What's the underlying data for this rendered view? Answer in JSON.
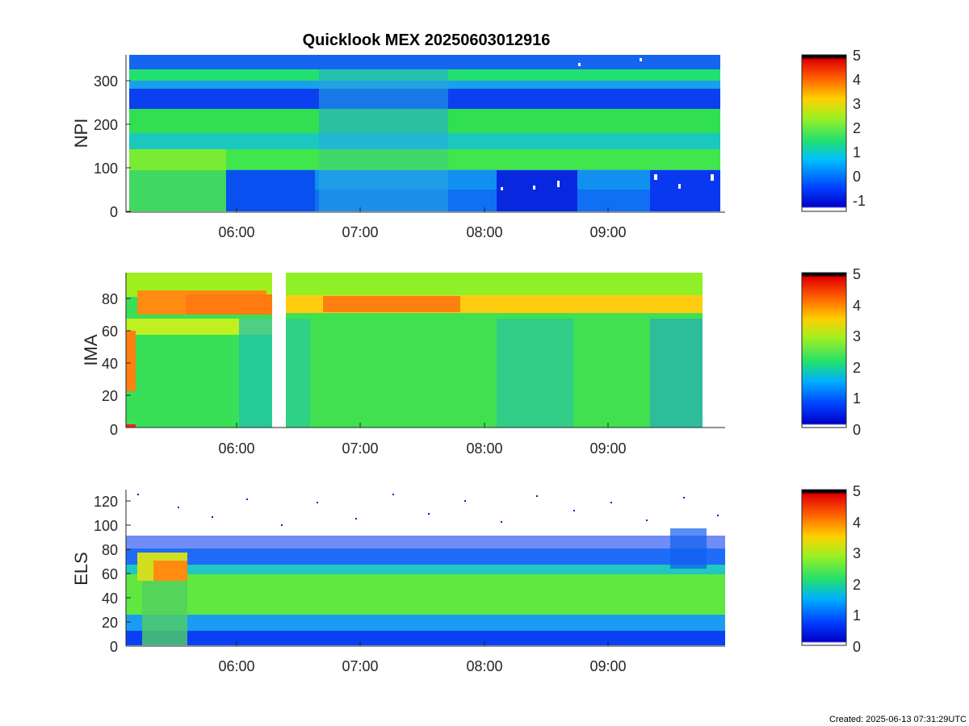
{
  "title": "Quicklook MEX 20250603012916",
  "footer": "Created: 2025-06-13 07:31:29UTC",
  "chart_data": [
    {
      "type": "heatmap",
      "ylabel": "NPI",
      "xticks": [
        "06:00",
        "07:00",
        "08:00",
        "09:00"
      ],
      "yticks": [
        "0",
        "100",
        "200",
        "300"
      ],
      "ylim": [
        0,
        360
      ],
      "colorbar": {
        "ticks": [
          "-1",
          "0",
          "1",
          "2",
          "3",
          "4",
          "5"
        ],
        "range": [
          -1.5,
          5
        ]
      }
    },
    {
      "type": "heatmap",
      "ylabel": "IMA",
      "xticks": [
        "06:00",
        "07:00",
        "08:00",
        "09:00"
      ],
      "yticks": [
        "0",
        "20",
        "40",
        "60",
        "80"
      ],
      "ylim": [
        0,
        96
      ],
      "colorbar": {
        "ticks": [
          "0",
          "1",
          "2",
          "3",
          "4",
          "5"
        ],
        "range": [
          0,
          5
        ]
      }
    },
    {
      "type": "heatmap",
      "ylabel": "ELS",
      "xticks": [
        "06:00",
        "07:00",
        "08:00",
        "09:00"
      ],
      "yticks": [
        "0",
        "20",
        "40",
        "60",
        "80",
        "100",
        "120"
      ],
      "ylim": [
        0,
        128
      ],
      "colorbar": {
        "ticks": [
          "0",
          "1",
          "2",
          "3",
          "4",
          "5"
        ],
        "range": [
          0,
          5
        ]
      }
    }
  ]
}
